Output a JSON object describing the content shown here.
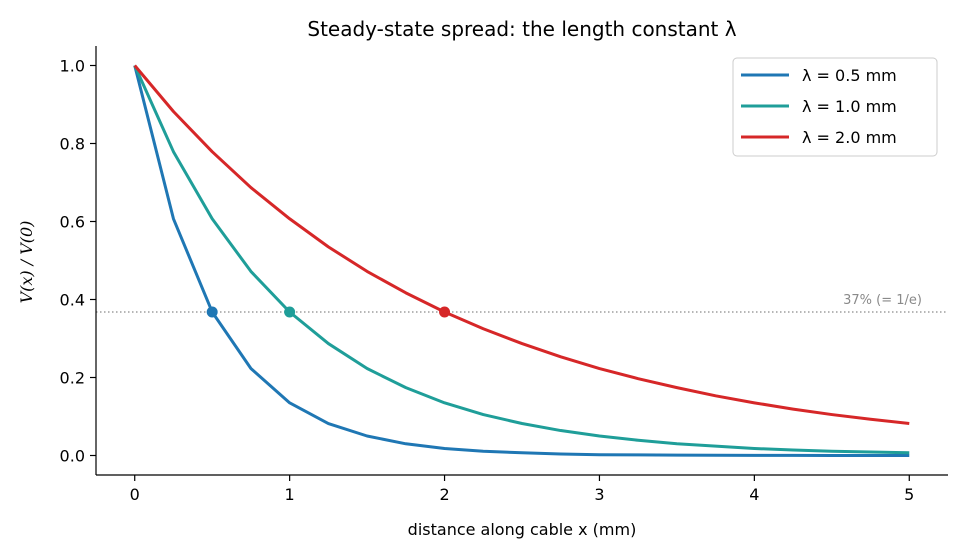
{
  "chart_data": {
    "type": "line",
    "title": "Steady-state spread: the length constant λ",
    "xlabel": "distance along cable  x (mm)",
    "ylabel": "V(x) / V(0)",
    "xlim": [
      -0.25,
      5.25
    ],
    "ylim": [
      -0.05,
      1.05
    ],
    "x_ticks": [
      0,
      1,
      2,
      3,
      4,
      5
    ],
    "x_tick_labels": [
      "0",
      "1",
      "2",
      "3",
      "4",
      "5"
    ],
    "y_ticks": [
      0.0,
      0.2,
      0.4,
      0.6,
      0.8,
      1.0
    ],
    "y_tick_labels": [
      "0.0",
      "0.2",
      "0.4",
      "0.6",
      "0.8",
      "1.0"
    ],
    "grid": false,
    "legend_position": "top-right",
    "x": [
      0,
      0.25,
      0.5,
      0.75,
      1.0,
      1.25,
      1.5,
      1.75,
      2.0,
      2.25,
      2.5,
      2.75,
      3.0,
      3.25,
      3.5,
      3.75,
      4.0,
      4.25,
      4.5,
      4.75,
      5.0
    ],
    "series": [
      {
        "name": "λ = 0.5 mm",
        "color": "#1f77b4",
        "values": [
          1.0,
          0.607,
          0.368,
          0.223,
          0.135,
          0.082,
          0.05,
          0.03,
          0.018,
          0.011,
          0.007,
          0.004,
          0.002,
          0.0015,
          0.0009,
          0.0006,
          0.0003,
          0.0002,
          0.0001,
          0.0001,
          0.0
        ],
        "marker": {
          "x": 0.5,
          "y": 0.368
        }
      },
      {
        "name": "λ = 1.0 mm",
        "color": "#1f9e99",
        "values": [
          1.0,
          0.779,
          0.607,
          0.472,
          0.368,
          0.287,
          0.223,
          0.174,
          0.135,
          0.105,
          0.082,
          0.064,
          0.05,
          0.039,
          0.03,
          0.024,
          0.018,
          0.014,
          0.011,
          0.009,
          0.007
        ],
        "marker": {
          "x": 1.0,
          "y": 0.368
        }
      },
      {
        "name": "λ = 2.0 mm",
        "color": "#d62728",
        "values": [
          1.0,
          0.882,
          0.779,
          0.687,
          0.607,
          0.535,
          0.472,
          0.417,
          0.368,
          0.325,
          0.287,
          0.253,
          0.223,
          0.197,
          0.174,
          0.153,
          0.135,
          0.119,
          0.105,
          0.093,
          0.082
        ],
        "marker": {
          "x": 2.0,
          "y": 0.368
        }
      }
    ],
    "reference_line": {
      "y": 0.368,
      "label": "37% (= 1/e)",
      "color": "#8a8a8a"
    }
  }
}
